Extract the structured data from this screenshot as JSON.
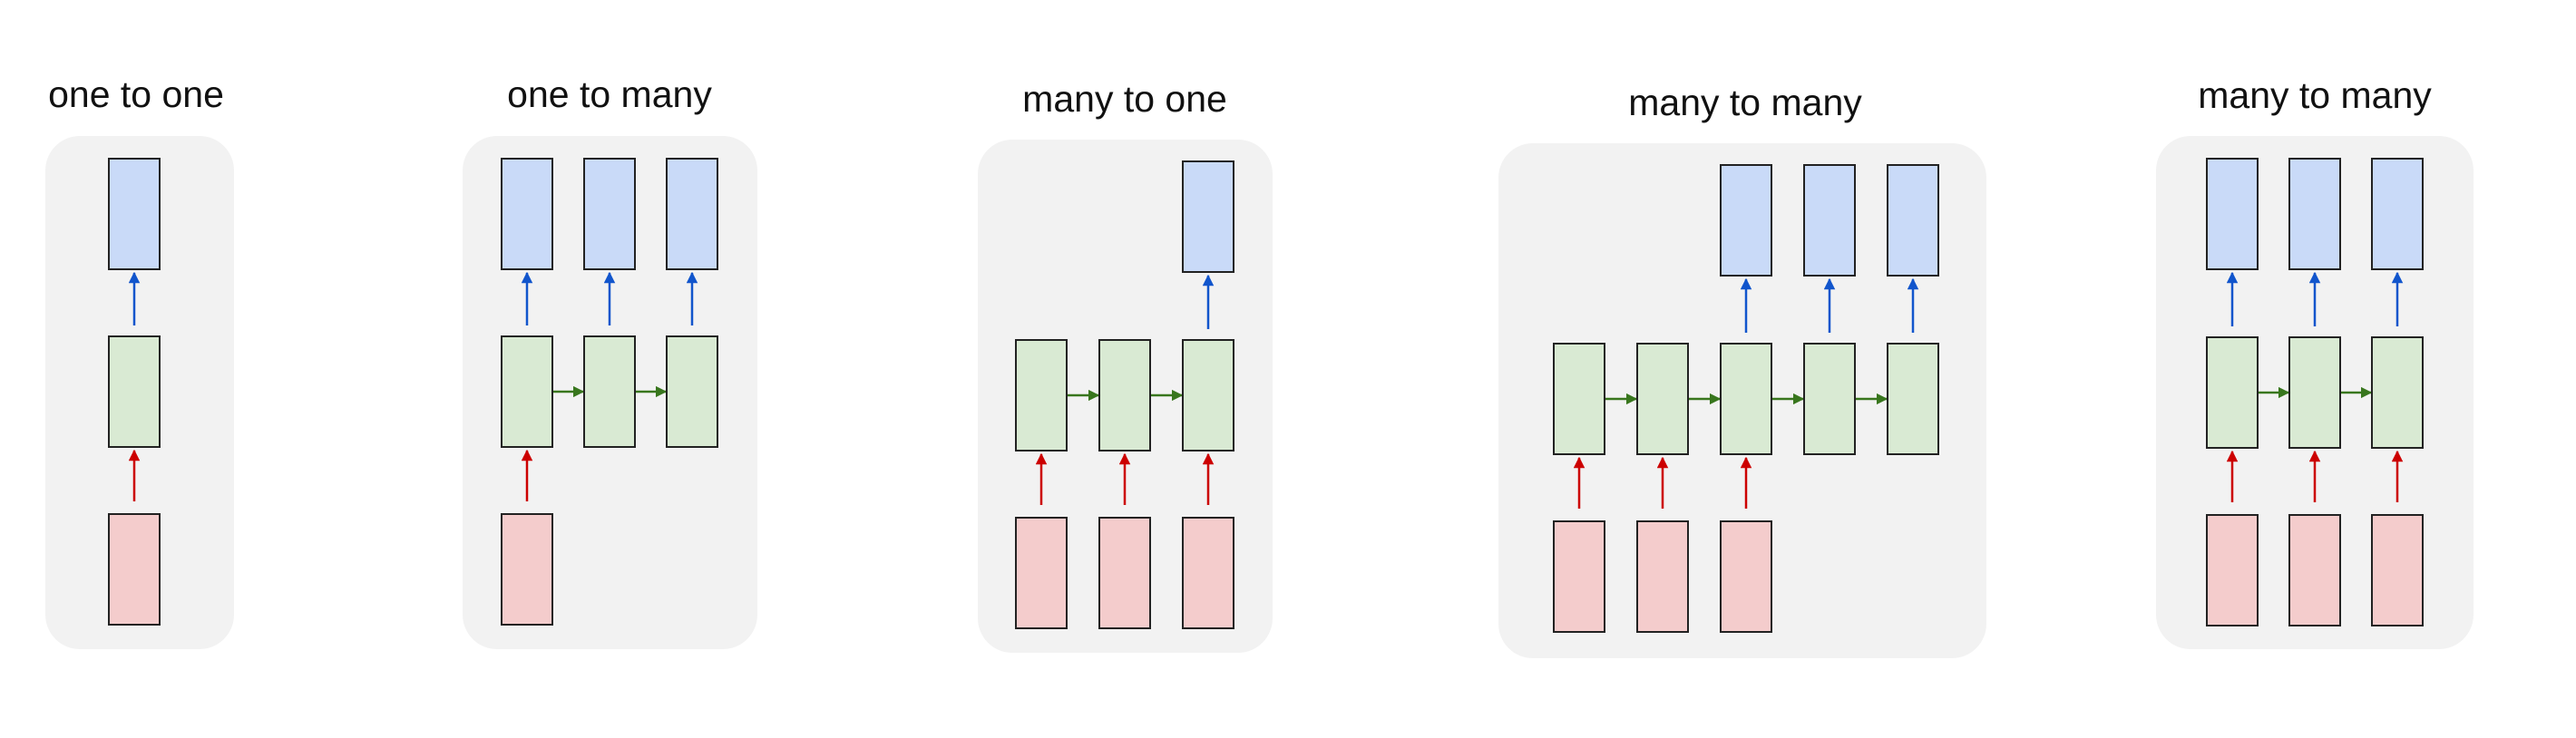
{
  "colors": {
    "panel": "#f2f2f2",
    "input_fill": "#f4cccc",
    "hidden_fill": "#d9ead3",
    "output_fill": "#c9daf8",
    "box_stroke": "#222222",
    "input_arrow": "#cc0000",
    "output_arrow": "#1155cc",
    "recurrent_arrow": "#38761d"
  },
  "diagrams": [
    {
      "title": "one to one",
      "inputs": [
        1
      ],
      "outputs": [
        1
      ],
      "steps": 1
    },
    {
      "title": "one to many",
      "inputs": [
        1,
        0,
        0
      ],
      "outputs": [
        1,
        1,
        1
      ],
      "steps": 3
    },
    {
      "title": "many to one",
      "inputs": [
        1,
        1,
        1
      ],
      "outputs": [
        0,
        0,
        1
      ],
      "steps": 3
    },
    {
      "title": "many to many",
      "inputs": [
        1,
        1,
        1,
        0,
        0
      ],
      "outputs": [
        0,
        0,
        1,
        1,
        1
      ],
      "steps": 5
    },
    {
      "title": "many to many",
      "inputs": [
        1,
        1,
        1
      ],
      "outputs": [
        1,
        1,
        1
      ],
      "steps": 3
    }
  ]
}
